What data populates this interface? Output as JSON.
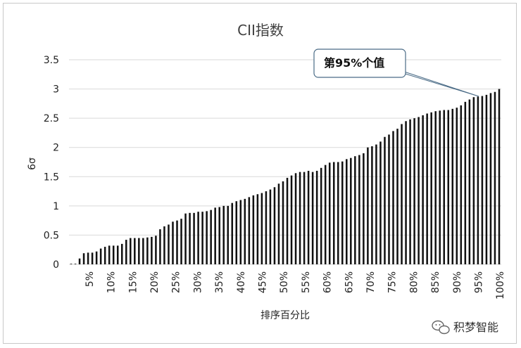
{
  "chart_data": {
    "type": "bar",
    "title": "CII指数",
    "ylabel": "6σ",
    "xlabel": "排序百分比",
    "ylim": [
      0,
      3.5
    ],
    "yticks": [
      "0",
      "0.5",
      "1",
      "1.5",
      "2",
      "2.5",
      "3",
      "3.5"
    ],
    "xticks": [
      "5%",
      "10%",
      "15%",
      "20%",
      "25%",
      "30%",
      "35%",
      "40%",
      "45%",
      "50%",
      "55%",
      "60%",
      "65%",
      "70%",
      "75%",
      "80%",
      "85%",
      "90%",
      "95%",
      "100%"
    ],
    "grid": "horizontal",
    "annotation": {
      "text": "第95%个值",
      "at_percent": 95
    },
    "values": [
      0.01,
      0.01,
      0.1,
      0.19,
      0.2,
      0.2,
      0.22,
      0.27,
      0.3,
      0.32,
      0.32,
      0.32,
      0.35,
      0.42,
      0.45,
      0.45,
      0.45,
      0.45,
      0.46,
      0.47,
      0.49,
      0.6,
      0.65,
      0.68,
      0.73,
      0.75,
      0.78,
      0.87,
      0.88,
      0.88,
      0.9,
      0.9,
      0.91,
      0.93,
      0.97,
      0.98,
      1.0,
      1.0,
      1.05,
      1.08,
      1.1,
      1.12,
      1.15,
      1.18,
      1.2,
      1.22,
      1.25,
      1.28,
      1.32,
      1.38,
      1.42,
      1.48,
      1.52,
      1.56,
      1.58,
      1.58,
      1.6,
      1.58,
      1.6,
      1.65,
      1.7,
      1.74,
      1.75,
      1.75,
      1.76,
      1.8,
      1.82,
      1.85,
      1.87,
      1.9,
      2.0,
      2.02,
      2.05,
      2.1,
      2.18,
      2.22,
      2.28,
      2.32,
      2.4,
      2.45,
      2.48,
      2.5,
      2.52,
      2.55,
      2.58,
      2.6,
      2.62,
      2.63,
      2.64,
      2.64,
      2.66,
      2.68,
      2.72,
      2.78,
      2.82,
      2.86,
      2.87,
      2.88,
      2.9,
      2.93,
      2.95,
      3.0
    ]
  },
  "watermark": {
    "text": "积梦智能",
    "icon": "wechat-icon"
  }
}
